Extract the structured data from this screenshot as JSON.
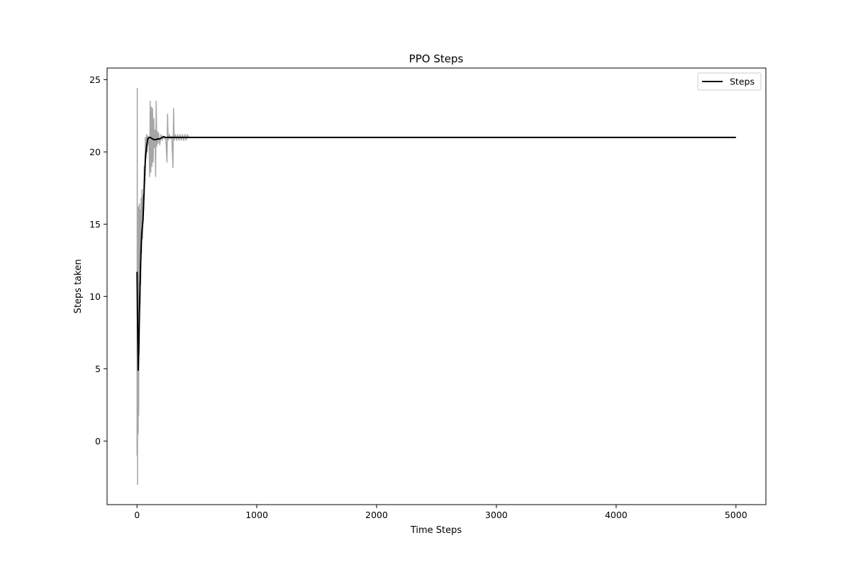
{
  "chart_data": {
    "type": "line",
    "title": "PPO Steps",
    "xlabel": "Time Steps",
    "ylabel": "Steps taken",
    "xlim": [
      -250,
      5250
    ],
    "ylim": [
      -4.4,
      25.8
    ],
    "xticks": [
      0,
      1000,
      2000,
      3000,
      4000,
      5000
    ],
    "yticks": [
      0,
      5,
      10,
      15,
      20,
      25
    ],
    "grid": false,
    "legend": {
      "position": "top-right",
      "entries": [
        "Steps"
      ]
    },
    "series": [
      {
        "name": "Steps",
        "color": "#000000",
        "x": [
          0,
          5,
          10,
          15,
          20,
          25,
          30,
          35,
          40,
          50,
          60,
          70,
          80,
          90,
          100,
          110,
          120,
          130,
          140,
          150,
          160,
          170,
          180,
          190,
          200,
          220,
          240,
          260,
          280,
          300,
          400,
          1000,
          2000,
          3000,
          4000,
          5000
        ],
        "y": [
          11.7,
          8.0,
          4.9,
          6.5,
          8.8,
          10.6,
          12.2,
          13.6,
          14.4,
          15.3,
          17.5,
          19.6,
          20.4,
          20.9,
          21.0,
          21.0,
          20.95,
          20.9,
          20.85,
          20.85,
          20.85,
          20.9,
          20.9,
          20.9,
          20.95,
          21.05,
          21.0,
          21.0,
          21.0,
          21.0,
          21.0,
          21.0,
          21.0,
          21.0,
          21.0,
          21.0
        ]
      },
      {
        "color": "#a6a6a6",
        "x": [
          0,
          2,
          4,
          6,
          8,
          10,
          12,
          14,
          16,
          18,
          20,
          22,
          24,
          26,
          28,
          30,
          34,
          38,
          42,
          46,
          50,
          55,
          60,
          65,
          70,
          75,
          80,
          85,
          90,
          95,
          100,
          105,
          110,
          115,
          120,
          125,
          130,
          135,
          140,
          145,
          150,
          155,
          160,
          165,
          170,
          175,
          180,
          190,
          200,
          210,
          220,
          230,
          240,
          250,
          255,
          260,
          270,
          280,
          290,
          300,
          305,
          310,
          320,
          330,
          340,
          350,
          360,
          370,
          380,
          390,
          400,
          410,
          420,
          430,
          500,
          1000,
          5000
        ],
        "y": [
          -1.0,
          24.4,
          -3.0,
          14.0,
          5.5,
          0.5,
          16.2,
          1.8,
          15.0,
          6.0,
          16.4,
          9.0,
          16.0,
          9.5,
          13.8,
          10.8,
          16.8,
          13.0,
          17.4,
          14.0,
          17.0,
          16.0,
          19.0,
          18.0,
          21.0,
          19.5,
          21.2,
          20.0,
          21.1,
          20.5,
          21.0,
          18.3,
          23.5,
          18.6,
          23.1,
          19.0,
          23.0,
          19.3,
          22.3,
          20.3,
          21.5,
          18.3,
          23.5,
          20.4,
          21.4,
          20.6,
          21.3,
          20.5,
          21.2,
          20.8,
          21.1,
          20.9,
          21.0,
          19.3,
          22.6,
          20.8,
          21.2,
          20.9,
          21.1,
          18.9,
          23.0,
          20.8,
          21.2,
          20.8,
          21.2,
          20.8,
          21.2,
          20.8,
          21.2,
          20.8,
          21.2,
          20.8,
          21.2,
          21.0,
          21.0,
          21.0,
          21.0
        ]
      }
    ]
  }
}
